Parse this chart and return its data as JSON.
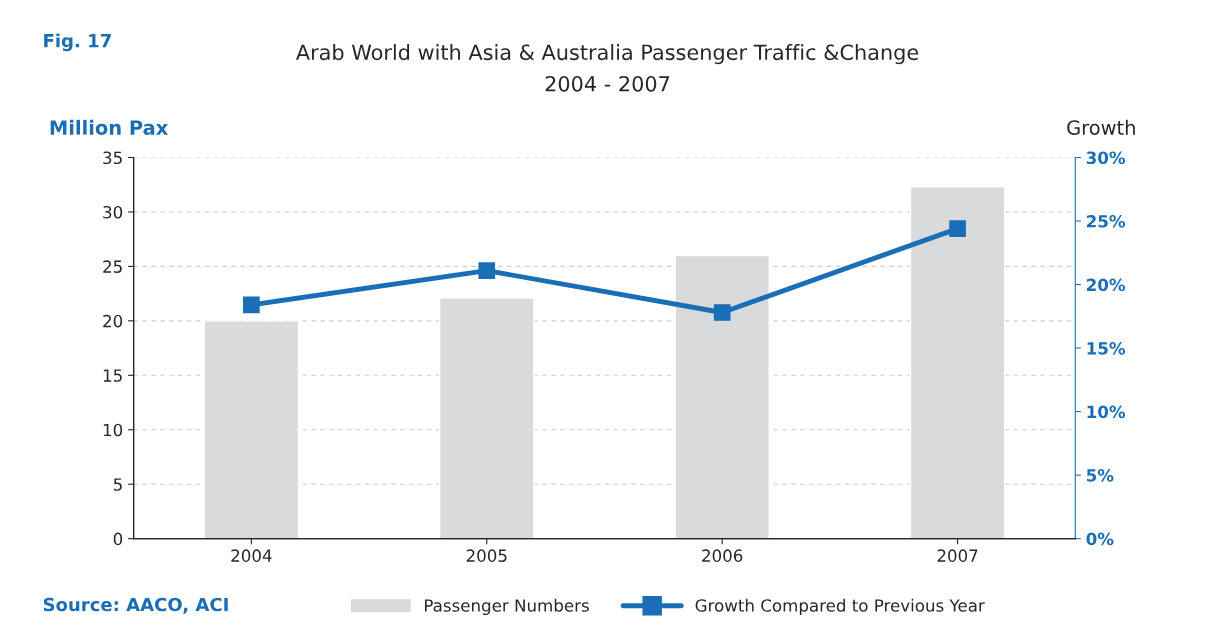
{
  "chart_data": {
    "type": "bar",
    "title": "Arab World with Asia & Australia Passenger Traffic &Change",
    "subtitle": "2004 - 2007",
    "ylabel": "Million Pax",
    "y2label": "Growth",
    "annotations": [
      "Fig. 17",
      "Source: AACO, ACI"
    ],
    "categories": [
      "2004",
      "2005",
      "2006",
      "2007"
    ],
    "series": [
      {
        "name": "Passenger Numbers",
        "color": "#d9dadb",
        "values": [
          20.0,
          22.1,
          26.0,
          32.3
        ]
      },
      {
        "name": "Growth Compared to Previous Year",
        "type": "line",
        "axis": "y2",
        "color": "#1a6eb5",
        "marker": "square",
        "values": [
          18.4,
          21.1,
          17.8,
          24.4
        ]
      }
    ],
    "ylim": [
      0,
      35
    ],
    "yticks": [
      0,
      5,
      10,
      15,
      20,
      25,
      30,
      35
    ],
    "y2lim": [
      0,
      30
    ],
    "y2ticks": [
      {
        "value": 0,
        "label": "0%"
      },
      {
        "value": 5,
        "label": "5%"
      },
      {
        "value": 10,
        "label": "10%"
      },
      {
        "value": 15,
        "label": "15%"
      },
      {
        "value": 20,
        "label": "20%"
      },
      {
        "value": 25,
        "label": "25%"
      },
      {
        "value": 30,
        "label": "30%"
      }
    ],
    "grid": "y",
    "legend": "bottom"
  }
}
